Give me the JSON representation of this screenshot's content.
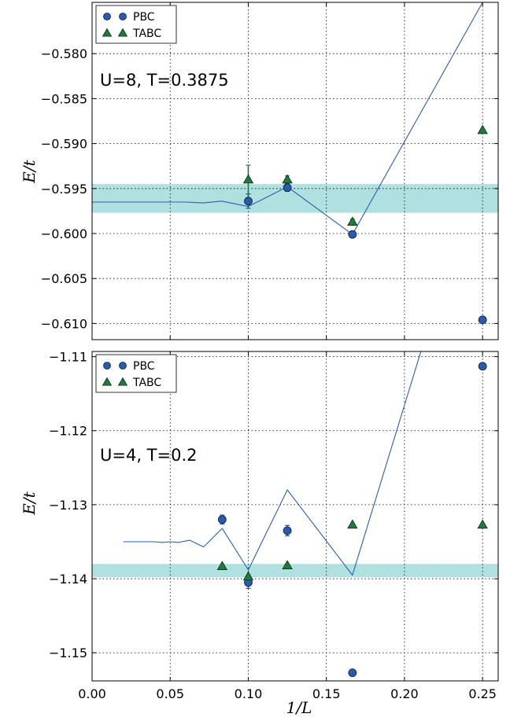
{
  "figure": {
    "xlabel": "1/L",
    "xticks": [
      "0.00",
      "0.05",
      "0.10",
      "0.15",
      "0.20",
      "0.25"
    ]
  },
  "chart_data": [
    {
      "type": "scatter",
      "title": "",
      "annotation": "U=8, T=0.3875",
      "xlabel": "1/L",
      "ylabel": "E/t",
      "xlim": [
        0.0,
        0.26
      ],
      "ylim": [
        -0.6118,
        -0.5743
      ],
      "yticks": [
        "-0.580",
        "-0.585",
        "-0.590",
        "-0.595",
        "-0.600",
        "-0.605",
        "-0.610"
      ],
      "grid": true,
      "legend_position": "top-left",
      "legend": [
        "PBC",
        "TABC"
      ],
      "band": {
        "y_low": -0.5977,
        "y_high": -0.5945,
        "color": "#b0e0e0"
      },
      "line": {
        "color": "#2b5fa8",
        "x": [
          0.0,
          0.02,
          0.04,
          0.06,
          0.071,
          0.083,
          0.1,
          0.125,
          0.1667,
          0.25
        ],
        "y": [
          -0.5965,
          -0.5965,
          -0.5965,
          -0.5965,
          -0.5966,
          -0.5964,
          -0.597,
          -0.5948,
          -0.6001,
          -0.5743
        ]
      },
      "series": [
        {
          "name": "PBC",
          "marker": "circle",
          "color": "#2a5aa8",
          "x": [
            0.1,
            0.125,
            0.1667,
            0.25
          ],
          "y": [
            -0.5964,
            -0.5949,
            -0.6001,
            -0.6096
          ],
          "err": [
            0.0008,
            0.0004,
            0.0002,
            0.0001
          ]
        },
        {
          "name": "TABC",
          "marker": "triangle",
          "color": "#1f7a3d",
          "x": [
            0.1,
            0.125,
            0.1667,
            0.25
          ],
          "y": [
            -0.594,
            -0.594,
            -0.5987,
            -0.5885
          ],
          "err": [
            0.0016,
            0.0004,
            0.0003,
            0.0001
          ]
        }
      ]
    },
    {
      "type": "scatter",
      "title": "",
      "annotation": "U=4, T=0.2",
      "xlabel": "1/L",
      "ylabel": "E/t",
      "xlim": [
        0.0,
        0.26
      ],
      "ylim": [
        -1.1538,
        -1.1093
      ],
      "yticks": [
        "-1.11",
        "-1.12",
        "-1.13",
        "-1.14",
        "-1.15"
      ],
      "grid": true,
      "legend_position": "top-left",
      "legend": [
        "PBC",
        "TABC"
      ],
      "band": {
        "y_low": -1.1398,
        "y_high": -1.138,
        "color": "#b0e0e0"
      },
      "line": {
        "color": "#2b5fa8",
        "x": [
          0.02,
          0.03,
          0.04,
          0.045,
          0.05,
          0.055,
          0.0625,
          0.0714,
          0.0833,
          0.1,
          0.125,
          0.1667,
          0.2105
        ],
        "y": [
          -1.135,
          -1.135,
          -1.135,
          -1.1351,
          -1.135,
          -1.1351,
          -1.1348,
          -1.1357,
          -1.1332,
          -1.1388,
          -1.128,
          -1.1395,
          -1.1093
        ]
      },
      "series": [
        {
          "name": "PBC",
          "marker": "circle",
          "color": "#2a5aa8",
          "x": [
            0.0833,
            0.1,
            0.125,
            0.1667,
            0.25
          ],
          "y": [
            -1.132,
            -1.1405,
            -1.1335,
            -1.1527,
            -1.1113
          ],
          "err": [
            0.0006,
            0.0008,
            0.0007,
            0.0001,
            0.0001
          ]
        },
        {
          "name": "TABC",
          "marker": "triangle",
          "color": "#1f7a3d",
          "x": [
            0.0833,
            0.1,
            0.125,
            0.1667,
            0.25
          ],
          "y": [
            -1.1383,
            -1.1397,
            -1.1382,
            -1.1327,
            -1.1327
          ],
          "err": [
            0.0001,
            0.0001,
            0.0001,
            0.0001,
            0.0001
          ]
        }
      ]
    }
  ]
}
